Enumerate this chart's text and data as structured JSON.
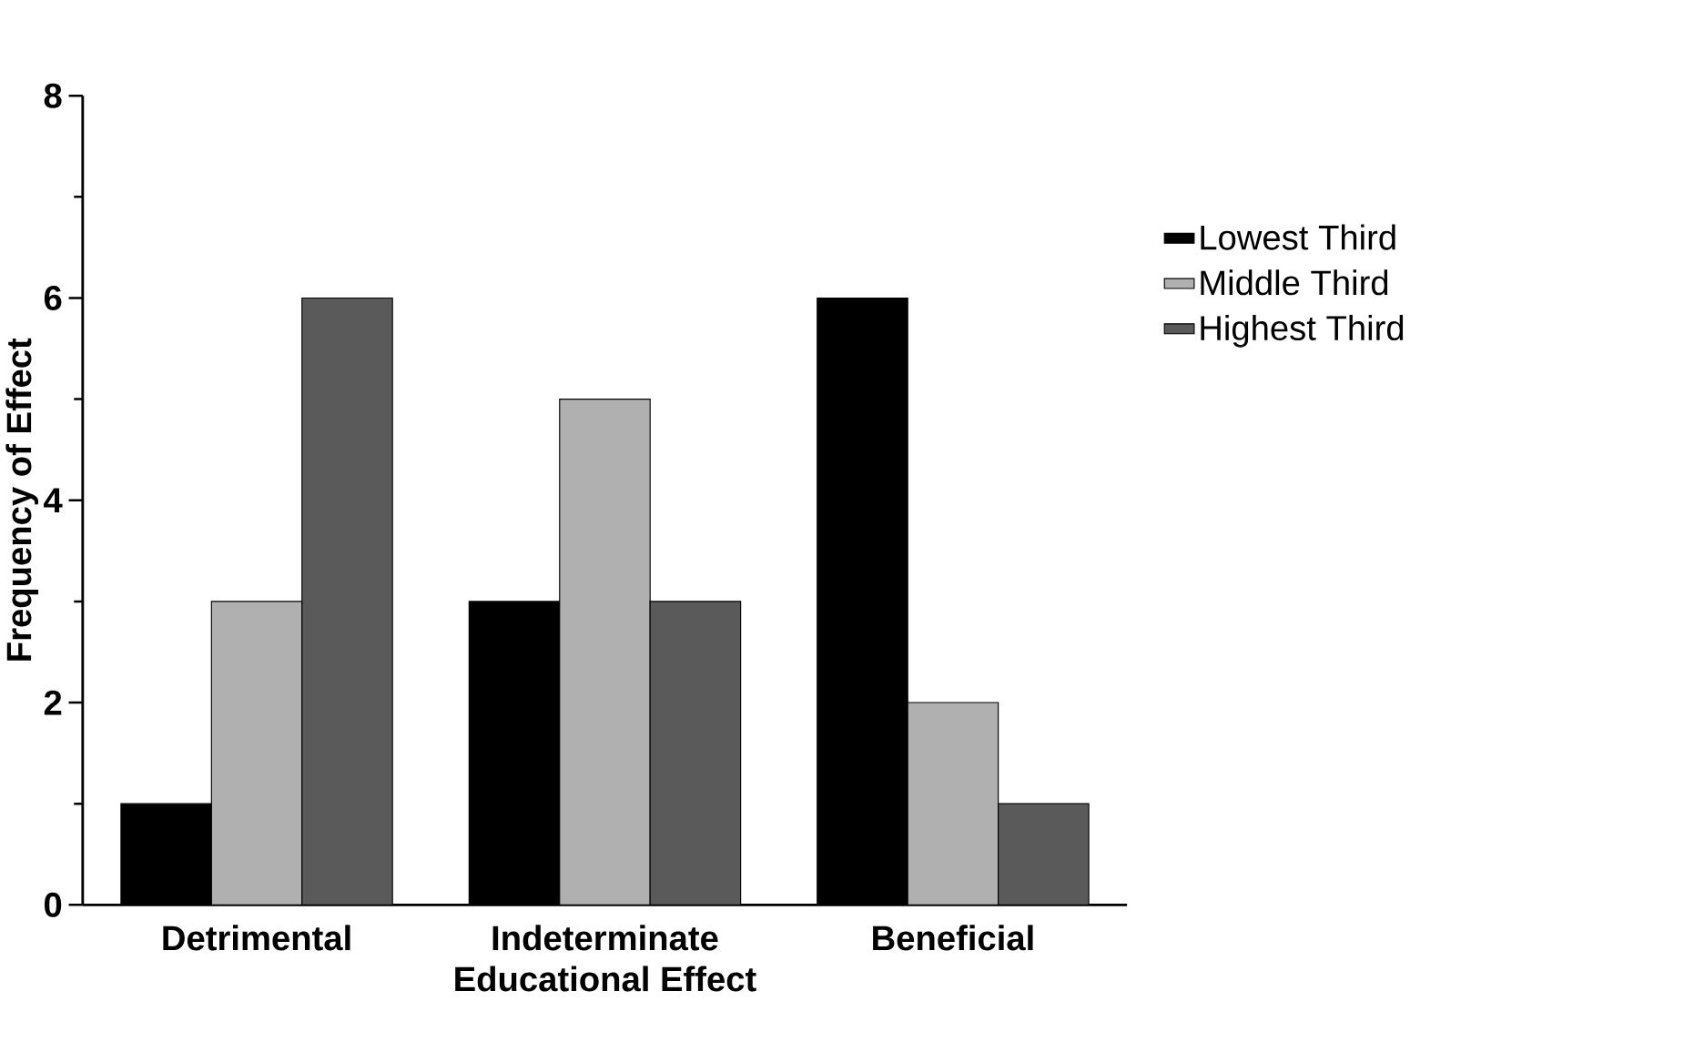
{
  "chart_data": {
    "type": "bar",
    "xlabel": "Educational Effect",
    "ylabel": "Frequency of Effect",
    "categories": [
      "Detrimental",
      "Indeterminate",
      "Beneficial"
    ],
    "series": [
      {
        "name": "Lowest Third",
        "color": "#000000",
        "values": [
          1,
          3,
          6
        ]
      },
      {
        "name": "Middle Third",
        "color": "#b0b0b0",
        "values": [
          3,
          5,
          2
        ]
      },
      {
        "name": "Highest Third",
        "color": "#5a5a5a",
        "values": [
          6,
          3,
          1
        ]
      }
    ],
    "ylim": [
      0,
      8
    ],
    "yticks": [
      0,
      2,
      4,
      6,
      8
    ],
    "grid": false,
    "legend": "right"
  }
}
